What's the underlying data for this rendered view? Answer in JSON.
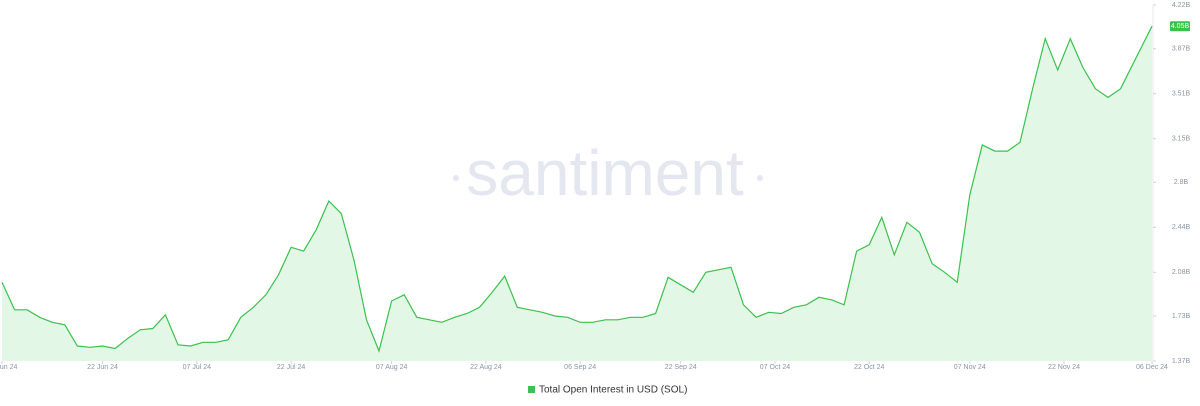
{
  "chart_data": {
    "type": "area",
    "watermark": "santiment",
    "x": [
      "2024-06-06",
      "2024-06-08",
      "2024-06-10",
      "2024-06-12",
      "2024-06-14",
      "2024-06-16",
      "2024-06-18",
      "2024-06-20",
      "2024-06-22",
      "2024-06-24",
      "2024-06-26",
      "2024-06-28",
      "2024-06-30",
      "2024-07-02",
      "2024-07-04",
      "2024-07-06",
      "2024-07-08",
      "2024-07-10",
      "2024-07-12",
      "2024-07-14",
      "2024-07-16",
      "2024-07-18",
      "2024-07-20",
      "2024-07-22",
      "2024-07-24",
      "2024-07-26",
      "2024-07-28",
      "2024-07-30",
      "2024-08-01",
      "2024-08-03",
      "2024-08-05",
      "2024-08-07",
      "2024-08-09",
      "2024-08-11",
      "2024-08-13",
      "2024-08-15",
      "2024-08-17",
      "2024-08-19",
      "2024-08-21",
      "2024-08-23",
      "2024-08-25",
      "2024-08-27",
      "2024-08-29",
      "2024-08-31",
      "2024-09-02",
      "2024-09-04",
      "2024-09-06",
      "2024-09-08",
      "2024-09-10",
      "2024-09-12",
      "2024-09-14",
      "2024-09-16",
      "2024-09-18",
      "2024-09-20",
      "2024-09-22",
      "2024-09-24",
      "2024-09-26",
      "2024-09-28",
      "2024-09-30",
      "2024-10-02",
      "2024-10-04",
      "2024-10-06",
      "2024-10-08",
      "2024-10-10",
      "2024-10-12",
      "2024-10-14",
      "2024-10-16",
      "2024-10-18",
      "2024-10-20",
      "2024-10-22",
      "2024-10-24",
      "2024-10-26",
      "2024-10-28",
      "2024-10-30",
      "2024-11-01",
      "2024-11-03",
      "2024-11-05",
      "2024-11-07",
      "2024-11-09",
      "2024-11-11",
      "2024-11-13",
      "2024-11-15",
      "2024-11-17",
      "2024-11-19",
      "2024-11-21",
      "2024-11-23",
      "2024-11-25",
      "2024-11-27",
      "2024-11-29",
      "2024-12-01",
      "2024-12-03",
      "2024-12-05",
      "2024-12-06"
    ],
    "series": [
      {
        "name": "Total Open Interest in USD (SOL)",
        "color": "#3cc04f",
        "fill": "#e3f7e6",
        "values": [
          2.0,
          1.78,
          1.78,
          1.72,
          1.68,
          1.66,
          1.49,
          1.48,
          1.49,
          1.47,
          1.55,
          1.62,
          1.63,
          1.74,
          1.5,
          1.49,
          1.52,
          1.52,
          1.54,
          1.72,
          1.8,
          1.9,
          2.06,
          2.28,
          2.25,
          2.42,
          2.65,
          2.55,
          2.18,
          1.7,
          1.45,
          1.85,
          1.9,
          1.72,
          1.7,
          1.68,
          1.72,
          1.75,
          1.8,
          1.92,
          2.05,
          1.8,
          1.78,
          1.76,
          1.73,
          1.72,
          1.68,
          1.68,
          1.7,
          1.7,
          1.72,
          1.72,
          1.75,
          2.04,
          1.98,
          1.92,
          2.08,
          2.1,
          2.12,
          1.82,
          1.72,
          1.76,
          1.75,
          1.8,
          1.82,
          1.88,
          1.86,
          1.82,
          2.25,
          2.3,
          2.52,
          2.22,
          2.48,
          2.4,
          2.15,
          2.08,
          2.0,
          2.7,
          3.1,
          3.05,
          3.05,
          3.12,
          3.55,
          3.95,
          3.7,
          3.95,
          3.72,
          3.55,
          3.48,
          3.55,
          3.75,
          3.95,
          4.05
        ]
      }
    ],
    "current_value_label": "4.05B",
    "xlim": [
      "2024-06-06",
      "2024-12-06"
    ],
    "xticks": [
      {
        "value": "2024-06-06",
        "label": "06 Jun 24"
      },
      {
        "value": "2024-06-22",
        "label": "22 Jun 24"
      },
      {
        "value": "2024-07-07",
        "label": "07 Jul 24"
      },
      {
        "value": "2024-07-22",
        "label": "22 Jul 24"
      },
      {
        "value": "2024-08-07",
        "label": "07 Aug 24"
      },
      {
        "value": "2024-08-22",
        "label": "22 Aug 24"
      },
      {
        "value": "2024-09-06",
        "label": "06 Sep 24"
      },
      {
        "value": "2024-09-22",
        "label": "22 Sep 24"
      },
      {
        "value": "2024-10-07",
        "label": "07 Oct 24"
      },
      {
        "value": "2024-10-22",
        "label": "22 Oct 24"
      },
      {
        "value": "2024-11-07",
        "label": "07 Nov 24"
      },
      {
        "value": "2024-11-22",
        "label": "22 Nov 24"
      },
      {
        "value": "2024-12-06",
        "label": "06 Dec 24"
      }
    ],
    "ylim": [
      1.37,
      4.22
    ],
    "yticks": [
      {
        "value": 1.37,
        "label": "1.37B"
      },
      {
        "value": 1.73,
        "label": "1.73B"
      },
      {
        "value": 2.08,
        "label": "2.08B"
      },
      {
        "value": 2.44,
        "label": "2.44B"
      },
      {
        "value": 2.8,
        "label": "2.8B"
      },
      {
        "value": 3.15,
        "label": "3.15B"
      },
      {
        "value": 3.51,
        "label": "3.51B"
      },
      {
        "value": 3.87,
        "label": "3.87B"
      },
      {
        "value": 4.22,
        "label": "4.22B"
      }
    ]
  }
}
